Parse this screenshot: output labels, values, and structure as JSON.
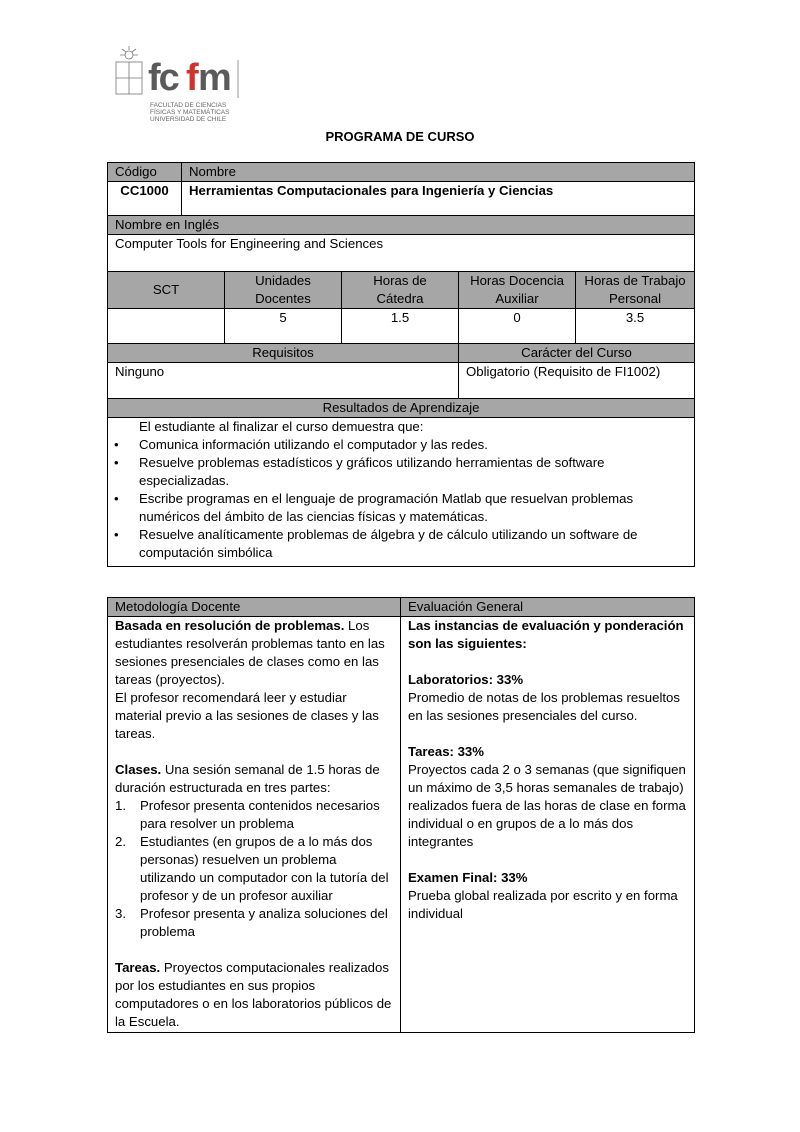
{
  "logo": {
    "text": "fcfm",
    "subtitle": [
      "FACULTAD DE CIENCIAS",
      "FÍSICAS Y MATEMÁTICAS",
      "UNIVERSIDAD DE CHILE"
    ],
    "colors": {
      "gray": "#5a5a5a",
      "red": "#d0322c"
    }
  },
  "title": "PROGRAMA DE CURSO",
  "course": {
    "code_label": "Código",
    "name_label": "Nombre",
    "code": "CC1000",
    "name": "Herramientas Computacionales para Ingeniería y Ciencias",
    "english_label": "Nombre en Inglés",
    "english": "Computer Tools for Engineering and Sciences"
  },
  "hours": {
    "headers": [
      "SCT",
      "Unidades Docentes",
      "Horas de Cátedra",
      "Horas Docencia Auxiliar",
      "Horas de Trabajo Personal"
    ],
    "values": [
      "",
      "5",
      "1.5",
      "0",
      "3.5"
    ]
  },
  "requisitos": {
    "label": "Requisitos",
    "value": "Ninguno",
    "caracter_label": "Carácter del Curso",
    "caracter": "Obligatorio (Requisito de FI1002)"
  },
  "resultados": {
    "label": "Resultados de Aprendizaje",
    "intro": "El estudiante al finalizar el curso demuestra que:",
    "items": [
      "Comunica información utilizando el computador y las redes.",
      "Resuelve problemas estadísticos y gráficos utilizando herramientas de software especializadas.",
      "Escribe programas en el lenguaje de programación Matlab que resuelvan problemas numéricos del ámbito de las ciencias físicas y matemáticas.",
      "Resuelve analíticamente problemas de álgebra y de cálculo utilizando un software de computación simbólica"
    ]
  },
  "metodologia": {
    "label": "Metodología Docente",
    "p1_bold": "Basada en resolución de problemas.",
    "p1": " Los estudiantes resolverán problemas tanto en las sesiones presenciales de clases como en las tareas (proyectos).",
    "p2": "El profesor recomendará leer y estudiar material previo a las sesiones de clases y las tareas.",
    "clases_bold": "Clases.",
    "clases": " Una sesión semanal de 1.5 horas de duración estructurada  en tres partes:",
    "steps": [
      "Profesor presenta contenidos necesarios para resolver un problema",
      "Estudiantes (en grupos de a lo más dos personas) resuelven un problema utilizando un computador con la tutoría del profesor y de un profesor auxiliar",
      "Profesor presenta y analiza soluciones del problema"
    ],
    "tareas_bold": "Tareas.",
    "tareas": " Proyectos computacionales realizados por los estudiantes en sus propios computadores o en los laboratorios públicos de la Escuela."
  },
  "evaluacion": {
    "label": "Evaluación General",
    "intro": "Las instancias de evaluación y ponderación son las siguientes:",
    "items": [
      {
        "title": "Laboratorios: 33%",
        "text": "Promedio de notas de los problemas resueltos en las sesiones presenciales del curso."
      },
      {
        "title": "Tareas: 33%",
        "text": "Proyectos cada 2 o 3 semanas (que signifiquen un máximo de 3,5 horas semanales de trabajo) realizados fuera de las horas de clase en forma individual o en grupos de a lo más dos integrantes"
      },
      {
        "title": "Examen Final: 33%",
        "text": "Prueba global realizada por escrito y en forma individual"
      }
    ]
  }
}
